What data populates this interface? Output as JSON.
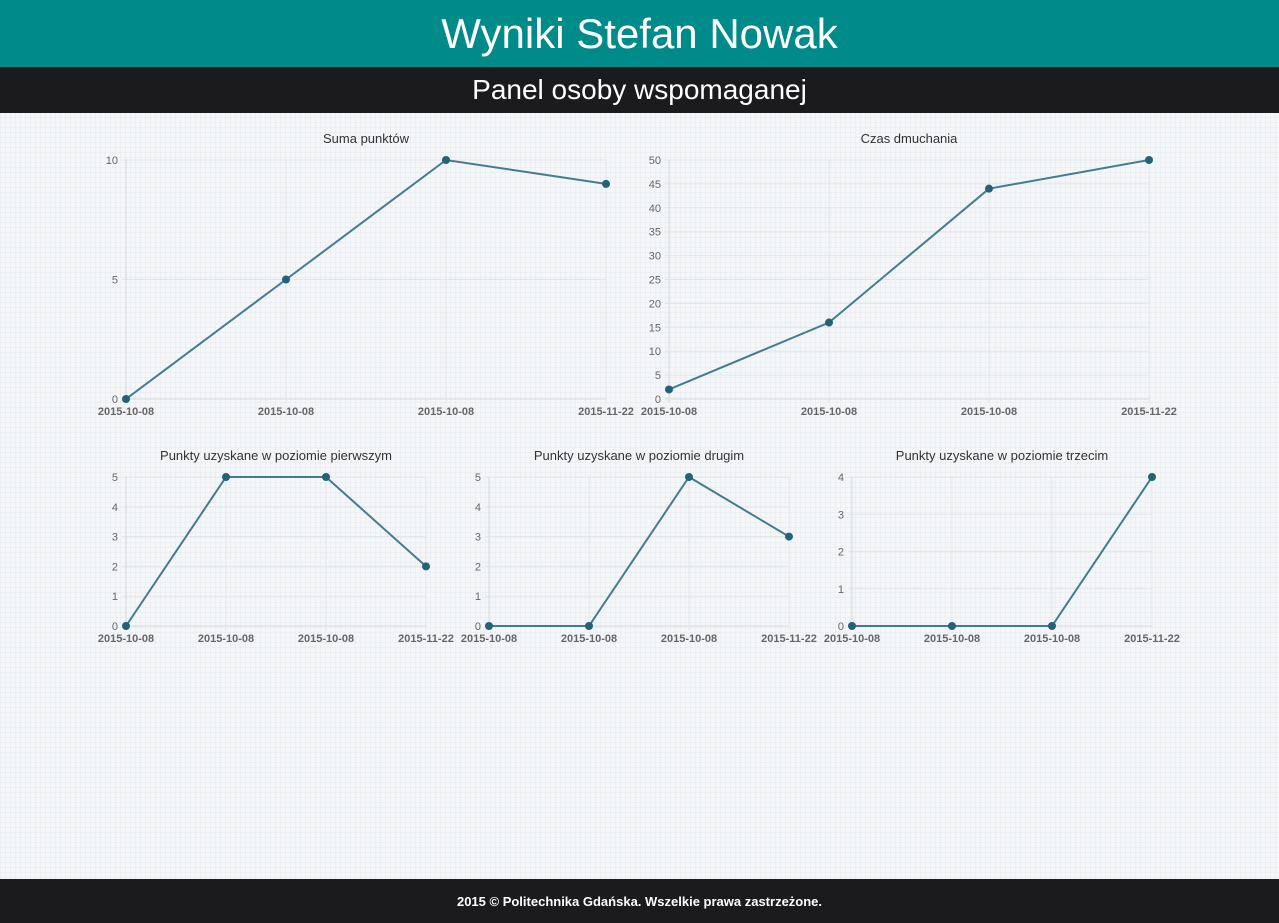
{
  "header": {
    "title": "Wyniki Stefan Nowak"
  },
  "subheader": {
    "title": "Panel osoby wspomaganej"
  },
  "footer": {
    "text": "2015 © Politechnika Gdańska. Wszelkie prawa zastrzeżone."
  },
  "colors": {
    "header_bg": "#008b8b",
    "bar_bg": "#1b1b1e",
    "series": "#457b8f",
    "point": "#24627a"
  },
  "chart_data": [
    {
      "type": "line",
      "title": "Suma punktów",
      "categories": [
        "2015-10-08",
        "2015-10-08",
        "2015-10-08",
        "2015-11-22"
      ],
      "series": [
        {
          "values": [
            0,
            5,
            10,
            9
          ]
        }
      ],
      "yticks": [
        0,
        5,
        10
      ],
      "ylim": [
        0,
        10
      ],
      "grid": true
    },
    {
      "type": "line",
      "title": "Czas dmuchania",
      "categories": [
        "2015-10-08",
        "2015-10-08",
        "2015-10-08",
        "2015-11-22"
      ],
      "series": [
        {
          "values": [
            2,
            16,
            44,
            50
          ]
        }
      ],
      "yticks": [
        0,
        5,
        10,
        15,
        20,
        25,
        30,
        35,
        40,
        45,
        50
      ],
      "ylim": [
        0,
        50
      ],
      "grid": true
    },
    {
      "type": "line",
      "title": "Punkty uzyskane w poziomie pierwszym",
      "categories": [
        "2015-10-08",
        "2015-10-08",
        "2015-10-08",
        "2015-11-22"
      ],
      "series": [
        {
          "values": [
            0,
            5,
            5,
            2
          ]
        }
      ],
      "yticks": [
        0,
        1,
        2,
        3,
        4,
        5
      ],
      "ylim": [
        0,
        5
      ],
      "grid": true
    },
    {
      "type": "line",
      "title": "Punkty uzyskane w poziomie drugim",
      "categories": [
        "2015-10-08",
        "2015-10-08",
        "2015-10-08",
        "2015-11-22"
      ],
      "series": [
        {
          "values": [
            0,
            0,
            5,
            3
          ]
        }
      ],
      "yticks": [
        0,
        1,
        2,
        3,
        4,
        5
      ],
      "ylim": [
        0,
        5
      ],
      "grid": true
    },
    {
      "type": "line",
      "title": "Punkty uzyskane w poziomie trzecim",
      "categories": [
        "2015-10-08",
        "2015-10-08",
        "2015-10-08",
        "2015-11-22"
      ],
      "series": [
        {
          "values": [
            0,
            0,
            0,
            4
          ]
        }
      ],
      "yticks": [
        0,
        1,
        2,
        3,
        4
      ],
      "ylim": [
        0,
        4
      ],
      "grid": true
    }
  ]
}
